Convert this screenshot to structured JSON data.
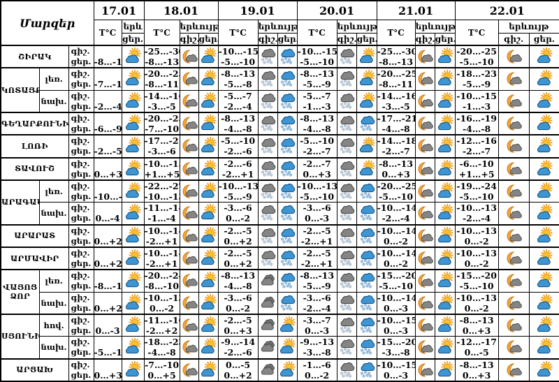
{
  "title": "Մարզեր",
  "header": {
    "temp_label": "T°C",
    "phenomenon_label": "երևույթ",
    "phenomenon_label_short": "երև",
    "night_label": "գիշ.",
    "day_label": "ցեր."
  },
  "dates": [
    "17.01",
    "18.01",
    "19.01",
    "20.01",
    "21.01",
    "22.01"
  ],
  "icon_types": [
    "sun-cloud",
    "moon-cloud",
    "dark-cloud-snow",
    "blue-cloud-snow",
    "dark-cloud"
  ],
  "colors": {
    "sun": "#fdc32d",
    "sun_ray": "#ef9c16",
    "moon": "#f2a33c",
    "moon_edge": "#c97e1b",
    "day_cloud": "#3d95d4",
    "day_cloud_edge": "#16537e",
    "night_cloud": "#858585",
    "night_cloud_edge": "#4a4a4a",
    "night_cloud_back": "#6e6e6e",
    "snow_gray": "#ccd6e0",
    "snow_gray_edge": "#92a6b9",
    "snow_blue": "#a9c9e7",
    "snow_blue_edge": "#6f9ec7",
    "border": "#000000",
    "background": "#ffffff"
  },
  "rows": [
    {
      "region": "ՇԻՐԱԿ",
      "region_span": 1,
      "zone": null,
      "cells": [
        {
          "night_temp": "",
          "day_temp": "-8…-13",
          "night_icon": null,
          "day_icon": "sun-cloud"
        },
        {
          "night_temp": "-25…-30",
          "day_temp": "-8…-13",
          "night_icon": "moon-cloud",
          "day_icon": "sun-cloud"
        },
        {
          "night_temp": "-10…-15",
          "day_temp": "-5…-10",
          "night_icon": "dark-cloud-snow",
          "day_icon": "blue-cloud-snow"
        },
        {
          "night_temp": "-10…-15",
          "day_temp": "-5…-10",
          "night_icon": "dark-cloud-snow",
          "day_icon": "sun-cloud"
        },
        {
          "night_temp": "-25…-30",
          "day_temp": "-8…-13",
          "night_icon": "moon-cloud",
          "day_icon": "sun-cloud"
        },
        {
          "night_temp": "-20…-25",
          "day_temp": "-5…-10",
          "night_icon": "moon-cloud",
          "day_icon": "sun-cloud"
        }
      ]
    },
    {
      "region": "ԿՈՏԱՅՔ",
      "region_span": 2,
      "zone": "լեռ.",
      "cells": [
        {
          "night_temp": "",
          "day_temp": "-7…-10",
          "night_icon": null,
          "day_icon": "sun-cloud"
        },
        {
          "night_temp": "-20…-25",
          "day_temp": "-8…-11",
          "night_icon": "moon-cloud",
          "day_icon": "sun-cloud"
        },
        {
          "night_temp": "-8…-13",
          "day_temp": "-5…-8",
          "night_icon": "dark-cloud-snow",
          "day_icon": "blue-cloud-snow"
        },
        {
          "night_temp": "-8…-13",
          "day_temp": "-5…-9",
          "night_icon": "dark-cloud-snow",
          "day_icon": "sun-cloud"
        },
        {
          "night_temp": "-20…-25",
          "day_temp": "-8…-11",
          "night_icon": "moon-cloud",
          "day_icon": "sun-cloud"
        },
        {
          "night_temp": "-18…-23",
          "day_temp": "-5…-9",
          "night_icon": "moon-cloud",
          "day_icon": "sun-cloud"
        }
      ]
    },
    {
      "region": null,
      "zone": "նախ.",
      "cells": [
        {
          "night_temp": "",
          "day_temp": "-2…-4",
          "night_icon": null,
          "day_icon": "sun-cloud"
        },
        {
          "night_temp": "-14…-16",
          "day_temp": "-3…-5",
          "night_icon": "moon-cloud",
          "day_icon": "sun-cloud"
        },
        {
          "night_temp": "-5…-7",
          "day_temp": "-2…-4",
          "night_icon": "dark-cloud-snow",
          "day_icon": "blue-cloud-snow"
        },
        {
          "night_temp": "-5…-7",
          "day_temp": "-1…-3",
          "night_icon": "dark-cloud-snow",
          "day_icon": "sun-cloud"
        },
        {
          "night_temp": "-14…-16",
          "day_temp": "-3…-5",
          "night_icon": "moon-cloud",
          "day_icon": "sun-cloud"
        },
        {
          "night_temp": "-10…-15",
          "day_temp": "-1…-3",
          "night_icon": "moon-cloud",
          "day_icon": "sun-cloud"
        }
      ]
    },
    {
      "region": "ԳԵՂԱՐՔՈՒՆԻՔ",
      "region_span": 1,
      "zone": null,
      "cells": [
        {
          "night_temp": "",
          "day_temp": "-6…-9",
          "night_icon": null,
          "day_icon": "sun-cloud"
        },
        {
          "night_temp": "-20…-25",
          "day_temp": "-7…-10",
          "night_icon": "moon-cloud",
          "day_icon": "sun-cloud"
        },
        {
          "night_temp": "-8…-13",
          "day_temp": "-4…-8",
          "night_icon": "dark-cloud-snow",
          "day_icon": "blue-cloud-snow"
        },
        {
          "night_temp": "-8…-13",
          "day_temp": "-4…-8",
          "night_icon": "dark-cloud-snow",
          "day_icon": "blue-cloud-snow"
        },
        {
          "night_temp": "-17…-21",
          "day_temp": "-4…-8",
          "night_icon": "moon-cloud",
          "day_icon": "sun-cloud"
        },
        {
          "night_temp": "-16…-19",
          "day_temp": "-4…-8",
          "night_icon": "moon-cloud",
          "day_icon": "sun-cloud"
        }
      ]
    },
    {
      "region": "ԼՈՌԻ",
      "region_span": 1,
      "zone": null,
      "cells": [
        {
          "night_temp": "",
          "day_temp": "-2…-5",
          "night_icon": null,
          "day_icon": "sun-cloud"
        },
        {
          "night_temp": "-17…-21",
          "day_temp": "-3…-6",
          "night_icon": "moon-cloud",
          "day_icon": "sun-cloud"
        },
        {
          "night_temp": "-5…-10",
          "day_temp": "-2…-6",
          "night_icon": "dark-cloud-snow",
          "day_icon": "blue-cloud-snow"
        },
        {
          "night_temp": "-5…-10",
          "day_temp": "-2…-7",
          "night_icon": "dark-cloud-snow",
          "day_icon": "sun-cloud"
        },
        {
          "night_temp": "-14…-18",
          "day_temp": "-2…-7",
          "night_icon": "moon-cloud",
          "day_icon": "sun-cloud"
        },
        {
          "night_temp": "-12…-16",
          "day_temp": "-2…-7",
          "night_icon": "moon-cloud",
          "day_icon": "sun-cloud"
        }
      ]
    },
    {
      "region": "ՏԱՎՈՒՇ",
      "region_span": 1,
      "zone": null,
      "cells": [
        {
          "night_temp": "",
          "day_temp": "0…+3",
          "night_icon": null,
          "day_icon": "sun-cloud"
        },
        {
          "night_temp": "-10…-15",
          "day_temp": "+1…+5",
          "night_icon": "moon-cloud",
          "day_icon": "sun-cloud"
        },
        {
          "night_temp": "-2…-6",
          "day_temp": "-2…+1",
          "night_icon": "dark-cloud-snow",
          "day_icon": "blue-cloud-snow"
        },
        {
          "night_temp": "-2…-7",
          "day_temp": "0…+3",
          "night_icon": "dark-cloud-snow",
          "day_icon": "sun-cloud"
        },
        {
          "night_temp": "-8…-13",
          "day_temp": "0…+3",
          "night_icon": "moon-cloud",
          "day_icon": "sun-cloud"
        },
        {
          "night_temp": "-6…-10",
          "day_temp": "+1…+5",
          "night_icon": "moon-cloud",
          "day_icon": "sun-cloud"
        }
      ]
    },
    {
      "region": "ԱՐԱԳԱԾՈՏՆ",
      "region_span": 2,
      "zone": "լեռ.",
      "cells": [
        {
          "night_temp": "",
          "day_temp": "-10…-13",
          "night_icon": null,
          "day_icon": "sun-cloud"
        },
        {
          "night_temp": "-22…-27",
          "day_temp": "-10…-13",
          "night_icon": "moon-cloud",
          "day_icon": "sun-cloud"
        },
        {
          "night_temp": "-10…-13",
          "day_temp": "-5…-9",
          "night_icon": "dark-cloud-snow",
          "day_icon": "blue-cloud-snow"
        },
        {
          "night_temp": "-10…-13",
          "day_temp": "-5…-10",
          "night_icon": "dark-cloud-snow",
          "day_icon": "blue-cloud-snow"
        },
        {
          "night_temp": "-20…-25",
          "day_temp": "-5…-10",
          "night_icon": "moon-cloud",
          "day_icon": "sun-cloud"
        },
        {
          "night_temp": "-19…-24",
          "day_temp": "-5…-10",
          "night_icon": "moon-cloud",
          "day_icon": "sun-cloud"
        }
      ]
    },
    {
      "region": null,
      "zone": "նախ.",
      "cells": [
        {
          "night_temp": "",
          "day_temp": "0…-4",
          "night_icon": null,
          "day_icon": "sun-cloud"
        },
        {
          "night_temp": "-11…-14",
          "day_temp": "-1…-4",
          "night_icon": "moon-cloud",
          "day_icon": "sun-cloud"
        },
        {
          "night_temp": "-3…-6",
          "day_temp": "0…-2",
          "night_icon": "dark-cloud-snow",
          "day_icon": "blue-cloud-snow"
        },
        {
          "night_temp": "-3…-6",
          "day_temp": "0…-3",
          "night_icon": "dark-cloud-snow",
          "day_icon": "blue-cloud-snow"
        },
        {
          "night_temp": "-10…-14",
          "day_temp": "-2…-4",
          "night_icon": "moon-cloud",
          "day_icon": "sun-cloud"
        },
        {
          "night_temp": "-10…-13",
          "day_temp": "-2…-4",
          "night_icon": "moon-cloud",
          "day_icon": "sun-cloud"
        }
      ]
    },
    {
      "region": "ԱՐԱՐԱՏ",
      "region_span": 1,
      "zone": null,
      "cells": [
        {
          "night_temp": "",
          "day_temp": "0…+2",
          "night_icon": null,
          "day_icon": "sun-cloud"
        },
        {
          "night_temp": "-10…-14",
          "day_temp": "-2…+1",
          "night_icon": "moon-cloud",
          "day_icon": "sun-cloud"
        },
        {
          "night_temp": "-2…-5",
          "day_temp": "0…+2",
          "night_icon": "dark-cloud-snow",
          "day_icon": "blue-cloud-snow"
        },
        {
          "night_temp": "-2…-5",
          "day_temp": "-2…+1",
          "night_icon": "dark-cloud-snow",
          "day_icon": "blue-cloud-snow"
        },
        {
          "night_temp": "-10…-14",
          "day_temp": "0…-2",
          "night_icon": "moon-cloud",
          "day_icon": "sun-cloud"
        },
        {
          "night_temp": "-10…-13",
          "day_temp": "0…-2",
          "night_icon": "moon-cloud",
          "day_icon": "sun-cloud"
        }
      ]
    },
    {
      "region": "ԱՐՄԱՎԻՐ",
      "region_span": 1,
      "zone": null,
      "cells": [
        {
          "night_temp": "",
          "day_temp": "0…+2",
          "night_icon": null,
          "day_icon": "sun-cloud"
        },
        {
          "night_temp": "-10…-14",
          "day_temp": "-2…+1",
          "night_icon": "moon-cloud",
          "day_icon": "sun-cloud"
        },
        {
          "night_temp": "-2…-5",
          "day_temp": "0…+2",
          "night_icon": "dark-cloud-snow",
          "day_icon": "blue-cloud-snow"
        },
        {
          "night_temp": "-2…-5",
          "day_temp": "-2…+1",
          "night_icon": "dark-cloud-snow",
          "day_icon": "blue-cloud-snow"
        },
        {
          "night_temp": "-10…-14",
          "day_temp": "0…-2",
          "night_icon": "moon-cloud",
          "day_icon": "sun-cloud"
        },
        {
          "night_temp": "-10…-13",
          "day_temp": "0…-2",
          "night_icon": "moon-cloud",
          "day_icon": "sun-cloud"
        }
      ]
    },
    {
      "region": "ՎԱՅՈՑ ՁՈՐ",
      "region_span": 2,
      "zone": "լեռ.",
      "cells": [
        {
          "night_temp": "",
          "day_temp": "-8…-10",
          "night_icon": null,
          "day_icon": "sun-cloud"
        },
        {
          "night_temp": "-20…-24",
          "day_temp": "-8…-10",
          "night_icon": "moon-cloud",
          "day_icon": "sun-cloud"
        },
        {
          "night_temp": "-8…-13",
          "day_temp": "-4…-8",
          "night_icon": "dark-cloud",
          "day_icon": "blue-cloud-snow"
        },
        {
          "night_temp": "-8…-13",
          "day_temp": "-5…-9",
          "night_icon": "dark-cloud-snow",
          "day_icon": "blue-cloud-snow"
        },
        {
          "night_temp": "-15…-20",
          "day_temp": "-5…-10",
          "night_icon": "moon-cloud",
          "day_icon": "sun-cloud"
        },
        {
          "night_temp": "-15…-20",
          "day_temp": "-5…-10",
          "night_icon": "moon-cloud",
          "day_icon": "sun-cloud"
        }
      ]
    },
    {
      "region": null,
      "zone": "նախ.",
      "cells": [
        {
          "night_temp": "",
          "day_temp": "0…+2",
          "night_icon": null,
          "day_icon": "sun-cloud"
        },
        {
          "night_temp": "-10…-13",
          "day_temp": "0…-2",
          "night_icon": "moon-cloud",
          "day_icon": "sun-cloud"
        },
        {
          "night_temp": "-3…-6",
          "day_temp": "0…-2",
          "night_icon": "dark-cloud",
          "day_icon": "blue-cloud-snow"
        },
        {
          "night_temp": "-3…-6",
          "day_temp": "-2…-4",
          "night_icon": "dark-cloud-snow",
          "day_icon": "blue-cloud-snow"
        },
        {
          "night_temp": "-10…-14",
          "day_temp": "0…-3",
          "night_icon": "moon-cloud",
          "day_icon": "sun-cloud"
        },
        {
          "night_temp": "-10…-13",
          "day_temp": "0…-2",
          "night_icon": "moon-cloud",
          "day_icon": "sun-cloud"
        }
      ]
    },
    {
      "region": "ՍՅՈՒՆԻՔ",
      "region_span": 2,
      "zone": "հով.",
      "cells": [
        {
          "night_temp": "",
          "day_temp": "0…-3",
          "night_icon": null,
          "day_icon": "sun-cloud"
        },
        {
          "night_temp": "-11…-16",
          "day_temp": "-2…+2",
          "night_icon": "moon-cloud",
          "day_icon": "sun-cloud"
        },
        {
          "night_temp": "-2…-5",
          "day_temp": "0…+3",
          "night_icon": "dark-cloud",
          "day_icon": "sun-cloud"
        },
        {
          "night_temp": "-3…-7",
          "day_temp": "0…-3",
          "night_icon": "dark-cloud-snow",
          "day_icon": "blue-cloud-snow"
        },
        {
          "night_temp": "-10…-15",
          "day_temp": "0…-3",
          "night_icon": "moon-cloud",
          "day_icon": "sun-cloud"
        },
        {
          "night_temp": "-8…-13",
          "day_temp": "0…+3",
          "night_icon": "moon-cloud",
          "day_icon": "sun-cloud"
        }
      ]
    },
    {
      "region": null,
      "zone": "նախ.",
      "cells": [
        {
          "night_temp": "",
          "day_temp": "-5…-10",
          "night_icon": null,
          "day_icon": "sun-cloud"
        },
        {
          "night_temp": "-18…-23",
          "day_temp": "-4…-8",
          "night_icon": "moon-cloud",
          "day_icon": "sun-cloud"
        },
        {
          "night_temp": "-9…-14",
          "day_temp": "-2…-6",
          "night_icon": "dark-cloud",
          "day_icon": "sun-cloud"
        },
        {
          "night_temp": "-9…-13",
          "day_temp": "-3…-8",
          "night_icon": "dark-cloud-snow",
          "day_icon": "blue-cloud-snow"
        },
        {
          "night_temp": "-15…-20",
          "day_temp": "-3…-8",
          "night_icon": "moon-cloud",
          "day_icon": "sun-cloud"
        },
        {
          "night_temp": "-12…-17",
          "day_temp": "0…-5",
          "night_icon": "moon-cloud",
          "day_icon": "sun-cloud"
        }
      ]
    },
    {
      "region": "ԱՐՑԱԽ",
      "region_span": 1,
      "zone": null,
      "cells": [
        {
          "night_temp": "",
          "day_temp": "0…+3",
          "night_icon": null,
          "day_icon": "sun-cloud"
        },
        {
          "night_temp": "-7…-10",
          "day_temp": "0…+5",
          "night_icon": "moon-cloud",
          "day_icon": "sun-cloud"
        },
        {
          "night_temp": "0…-5",
          "day_temp": "0…+2",
          "night_icon": "dark-cloud",
          "day_icon": "sun-cloud"
        },
        {
          "night_temp": "-1…-6",
          "day_temp": "0…-2",
          "night_icon": "dark-cloud-snow",
          "day_icon": "blue-cloud-snow"
        },
        {
          "night_temp": "-10…-15",
          "day_temp": "0…-3",
          "night_icon": "moon-cloud",
          "day_icon": "sun-cloud"
        },
        {
          "night_temp": "-8…-13",
          "day_temp": "0…+3",
          "night_icon": "moon-cloud",
          "day_icon": "sun-cloud"
        }
      ]
    }
  ]
}
